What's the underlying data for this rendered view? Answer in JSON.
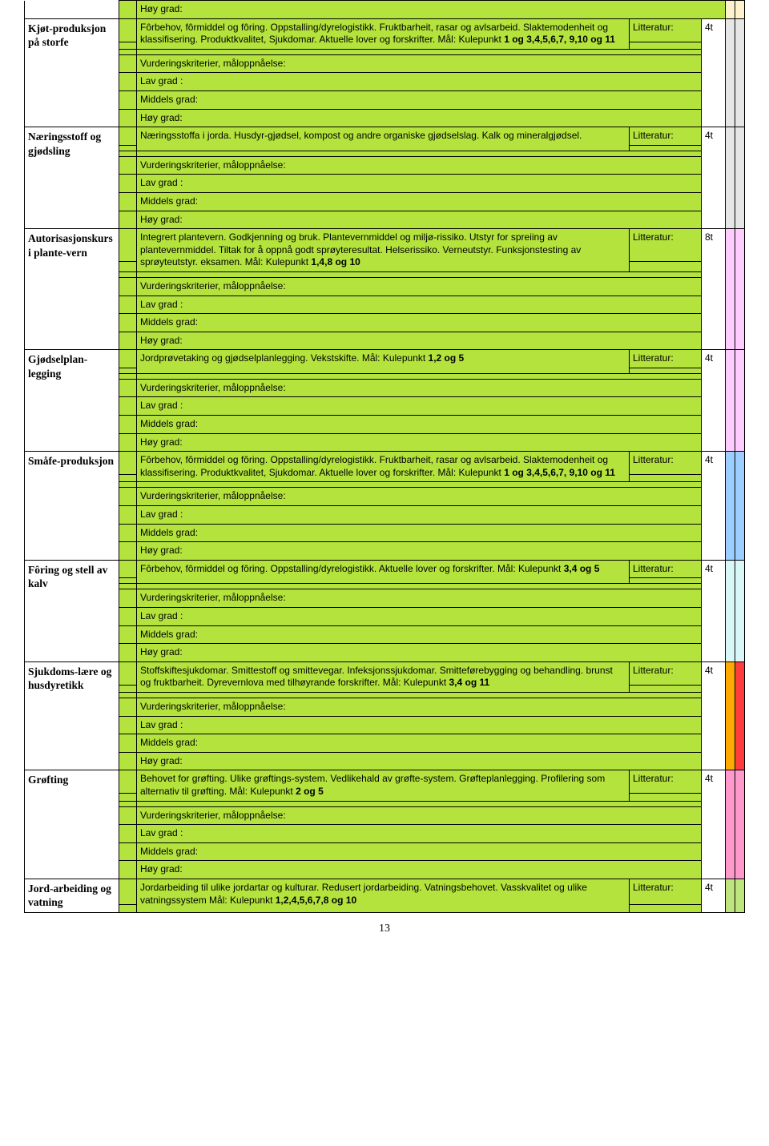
{
  "hoy": "Høy grad:",
  "lav": "Lav grad :",
  "mid": "Middels grad:",
  "vurd": "Vurderingskriterier, måloppnåelse:",
  "litt": "Litteratur:",
  "pageNum": "13",
  "colors": {
    "cream": "#fef2cc",
    "lightgray": "#e6e6e6",
    "pink": "#ffccff",
    "blue": "#9ccfff",
    "lightcyan": "#d9f7f7",
    "orange": "#ffaa00",
    "red": "#ff3d3d",
    "darkpink": "#ff99cc",
    "green2": "#bfe67e"
  },
  "topics": [
    {
      "label": "Kjøt-produksjon på storfe",
      "desc_plain": "Fôrbehov, fôrmiddel og fôring. Oppstalling/dyrelogistikk. Fruktbarheit, rasar og avlsarbeid. Slaktemodenheit og klassifisering. Produktkvalitet, Sjukdomar. Aktuelle lover og forskrifter. Mål: Kulepunkt ",
      "desc_bold": "1 og 3,4,5,6,7, 9,10 og 11",
      "hours": "4t",
      "c1": "#e6e6e6",
      "c2": "#e6e6e6",
      "pre_c1": "#fef2cc",
      "pre_c2": "#fef2cc"
    },
    {
      "label": "Næringsstoff og gjødsling",
      "desc_plain": "Næringsstoffa i jorda. Husdyr-gjødsel, kompost og andre organiske gjødselslag. Kalk og  mineralgjødsel.",
      "desc_bold": "",
      "hours": "4t",
      "c1": "#e6e6e6",
      "c2": "#e6e6e6"
    },
    {
      "label": "Autorisasjonskurs i plante-vern",
      "desc_plain": "Integrert plantevern. Godkjenning og bruk. Plantevernmiddel og miljø-rissiko. Utstyr for spreiing av plantevernmiddel. Tiltak for å oppnå godt sprøyteresultat. Helserissiko. Verneutstyr. Funksjonstesting av sprøyteutstyr. eksamen. Mål: Kulepunkt ",
      "desc_bold": "1,4,8 og 10",
      "hours": "8t",
      "c1": "#ffccff",
      "c2": "#ffccff"
    },
    {
      "label": "Gjødselplan-legging",
      "desc_plain": "Jordprøvetaking og gjødselplanlegging. Vekstskifte. Mål: Kulepunkt ",
      "desc_bold": "1,2 og 5",
      "hours": "4t",
      "c1": "#ffccff",
      "c2": "#ffccff"
    },
    {
      "label": "Småfe-produksjon",
      "desc_plain": "Fôrbehov, fôrmiddel og fôring. Oppstalling/dyrelogistikk. Fruktbarheit, rasar og avlsarbeid. Slaktemodenheit og klassifisering. Produktkvalitet, Sjukdomar. Aktuelle lover og forskrifter. Mål: Kulepunkt ",
      "desc_bold": "1 og 3,4,5,6,7, 9,10 og 11",
      "hours": "4t",
      "c1": "#9ccfff",
      "c2": "#9ccfff"
    },
    {
      "label": "Fôring og stell av kalv",
      "desc_plain": "Fôrbehov, fôrmiddel og fôring. Oppstalling/dyrelogistikk. Aktuelle lover og forskrifter. Mål: Kulepunkt ",
      "desc_bold": "3,4 og 5",
      "hours": "4t",
      "c1": "#d9f7f7",
      "c2": "#d9f7f7"
    },
    {
      "label": "Sjukdoms-lære og husdyretikk",
      "desc_plain": "Stoffskiftesjukdomar. Smittestoff og smittevegar. Infeksjonssjukdomar. Smitteførebygging og behandling. brunst og fruktbarheit. Dyrevernlova med tilhøyrande forskrifter. Mål: Kulepunkt ",
      "desc_bold": "3,4 og 11",
      "hours": "4t",
      "c1": "#ffaa00",
      "c2": "#ff3d3d"
    },
    {
      "label": "Grøfting",
      "desc_plain": "Behovet for grøfting. Ulike grøftings-system. Vedlikehald av grøfte-system. Grøfteplanlegging. Profilering som alternativ til grøfting. Mål: Kulepunkt ",
      "desc_bold": "2 og 5",
      "hours": "4t",
      "c1": "#ff99cc",
      "c2": "#ff99cc"
    },
    {
      "label": "Jord-arbeiding og vatning",
      "desc_plain": "Jordarbeiding til ulike jordartar og kulturar. Redusert jordarbeiding. Vatningsbehovet. Vasskvalitet og ulike vatningssystem Mål: Kulepunkt ",
      "desc_bold": "1,2,4,5,6,7,8 og 10",
      "noGrades": true,
      "hours": "4t",
      "c1": "#bfe67e",
      "c2": "#bfe67e"
    }
  ]
}
